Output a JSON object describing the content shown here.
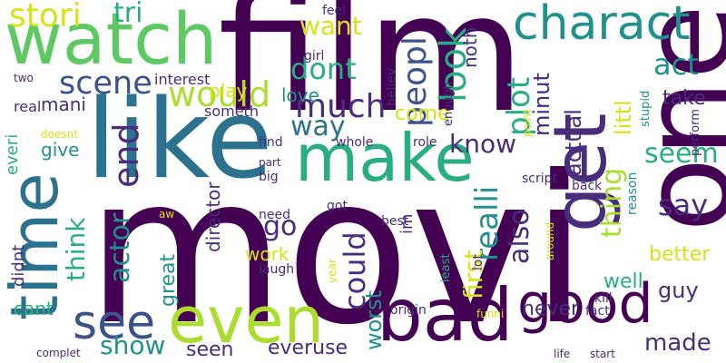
{
  "palette": {
    "deep_purple": "#440154",
    "indigo": "#472d7b",
    "blue_violet": "#3b528b",
    "steel_blue": "#2c728e",
    "teal": "#21918c",
    "sea_green": "#28ae80",
    "green": "#5ec962",
    "lime": "#addc30",
    "yellow": "#d8e219",
    "bright_yellow": "#fde725"
  },
  "words": [
    {
      "text": "movi",
      "color": "deep_purple"
    },
    {
      "text": "film",
      "color": "deep_purple"
    },
    {
      "text": "one",
      "color": "deep_purple"
    },
    {
      "text": "like",
      "color": "steel_blue"
    },
    {
      "text": "watch",
      "color": "green"
    },
    {
      "text": "time",
      "color": "steel_blue"
    },
    {
      "text": "make",
      "color": "sea_green"
    },
    {
      "text": "even",
      "color": "lime"
    },
    {
      "text": "bad",
      "color": "deep_purple"
    },
    {
      "text": "get",
      "color": "indigo"
    },
    {
      "text": "good",
      "color": "deep_purple"
    },
    {
      "text": "charact",
      "color": "teal"
    },
    {
      "text": "see",
      "color": "blue_violet"
    },
    {
      "text": "would",
      "color": "lime"
    },
    {
      "text": "look",
      "color": "sea_green"
    },
    {
      "text": "stori",
      "color": "yellow"
    },
    {
      "text": "scene",
      "color": "blue_violet"
    },
    {
      "text": "end",
      "color": "indigo"
    },
    {
      "text": "much",
      "color": "indigo"
    },
    {
      "text": "realli",
      "color": "teal"
    },
    {
      "text": "plot",
      "color": "sea_green"
    },
    {
      "text": "peopl",
      "color": "blue_violet"
    },
    {
      "text": "act",
      "color": "teal"
    },
    {
      "text": "dont",
      "color": "sea_green"
    },
    {
      "text": "thing",
      "color": "lime"
    },
    {
      "text": "seem",
      "color": "sea_green"
    },
    {
      "text": "say",
      "color": "indigo"
    },
    {
      "text": "know",
      "color": "indigo"
    },
    {
      "text": "think",
      "color": "sea_green"
    },
    {
      "text": "actor",
      "color": "teal"
    },
    {
      "text": "way",
      "color": "steel_blue"
    },
    {
      "text": "first",
      "color": "yellow"
    },
    {
      "text": "could",
      "color": "indigo"
    },
    {
      "text": "also",
      "color": "indigo"
    },
    {
      "text": "go",
      "color": "indigo"
    },
    {
      "text": "want",
      "color": "yellow"
    },
    {
      "text": "made",
      "color": "indigo"
    },
    {
      "text": "show",
      "color": "teal"
    },
    {
      "text": "tri",
      "color": "sea_green"
    },
    {
      "text": "work",
      "color": "yellow"
    },
    {
      "text": "director",
      "color": "indigo"
    },
    {
      "text": "better",
      "color": "yellow"
    },
    {
      "text": "guy",
      "color": "indigo"
    },
    {
      "text": "littl",
      "color": "yellow"
    },
    {
      "text": "actual",
      "color": "indigo"
    },
    {
      "text": "minut",
      "color": "indigo"
    },
    {
      "text": "never",
      "color": "indigo"
    },
    {
      "text": "well",
      "color": "sea_green"
    },
    {
      "text": "worst",
      "color": "teal"
    },
    {
      "text": "great",
      "color": "teal"
    },
    {
      "text": "seen",
      "color": "indigo"
    },
    {
      "text": "everuse",
      "color": "indigo"
    },
    {
      "text": "come",
      "color": "yellow"
    },
    {
      "text": "take",
      "color": "indigo"
    },
    {
      "text": "noth",
      "color": "indigo"
    },
    {
      "text": "mani",
      "color": "indigo"
    },
    {
      "text": "love",
      "color": "teal"
    },
    {
      "text": "give",
      "color": "teal"
    },
    {
      "text": "play",
      "color": "yellow"
    },
    {
      "text": "cant",
      "color": "sea_green"
    },
    {
      "text": "didnt",
      "color": "indigo"
    },
    {
      "text": "everi",
      "color": "sea_green"
    },
    {
      "text": "im",
      "color": "indigo"
    },
    {
      "text": "interest",
      "color": "indigo"
    },
    {
      "text": "someth",
      "color": "indigo"
    },
    {
      "text": "real",
      "color": "indigo"
    },
    {
      "text": "doesnt",
      "color": "yellow"
    },
    {
      "text": "two",
      "color": "indigo"
    },
    {
      "text": "feel",
      "color": "indigo"
    },
    {
      "text": "girl",
      "color": "indigo"
    },
    {
      "text": "believ",
      "color": "indigo"
    },
    {
      "text": "enough",
      "color": "indigo"
    },
    {
      "text": "point",
      "color": "yellow"
    },
    {
      "text": "stupid",
      "color": "teal"
    },
    {
      "text": "perform",
      "color": "indigo"
    },
    {
      "text": "find",
      "color": "indigo"
    },
    {
      "text": "whole",
      "color": "indigo"
    },
    {
      "text": "role",
      "color": "indigo"
    },
    {
      "text": "part",
      "color": "indigo"
    },
    {
      "text": "big",
      "color": "indigo"
    },
    {
      "text": "script",
      "color": "indigo"
    },
    {
      "text": "back",
      "color": "indigo"
    },
    {
      "text": "reason",
      "color": "teal"
    },
    {
      "text": "around",
      "color": "yellow"
    },
    {
      "text": "aw",
      "color": "yellow"
    },
    {
      "text": "need",
      "color": "indigo"
    },
    {
      "text": "got",
      "color": "indigo"
    },
    {
      "text": "best",
      "color": "indigo"
    },
    {
      "text": "year",
      "color": "yellow"
    },
    {
      "text": "laugh",
      "color": "indigo"
    },
    {
      "text": "least",
      "color": "sea_green"
    },
    {
      "text": "lot",
      "color": "indigo"
    },
    {
      "text": "kill",
      "color": "indigo"
    },
    {
      "text": "origin",
      "color": "indigo"
    },
    {
      "text": "funni",
      "color": "yellow"
    },
    {
      "text": "fact",
      "color": "indigo"
    },
    {
      "text": "complet",
      "color": "indigo"
    },
    {
      "text": "life",
      "color": "indigo"
    },
    {
      "text": "start",
      "color": "indigo"
    }
  ]
}
